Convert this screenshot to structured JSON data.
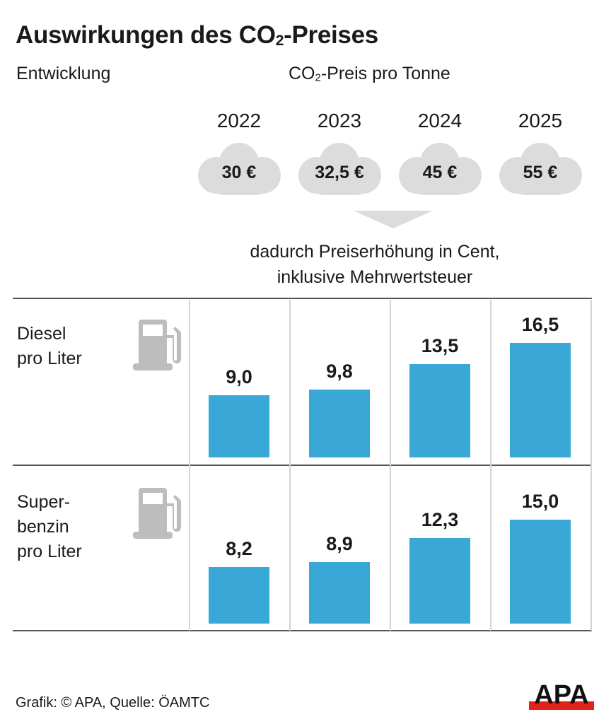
{
  "title_main": "Auswirkungen des CO",
  "title_sub": "2",
  "title_rest": "-Preises",
  "subtitle": "Entwicklung",
  "unit_main": "CO",
  "unit_sub": "2",
  "unit_rest": "-Preis pro Tonne",
  "note_line1": "dadurch Preiserhöhung in Cent,",
  "note_line2": "inklusive Mehrwertsteuer",
  "source": "Grafik: © APA, Quelle: ÖAMTC",
  "logo": "APA",
  "colors": {
    "bar": "#3aa8d6",
    "cloud": "#dcdcdc",
    "icon": "#bdbdbd",
    "logo_red": "#e2231a"
  },
  "chart_data": {
    "type": "bar",
    "title": "Auswirkungen des CO2-Preises",
    "categories": [
      "2022",
      "2023",
      "2024",
      "2025"
    ],
    "co2_price_labels": [
      "30 €",
      "32,5 €",
      "45 €",
      "55 €"
    ],
    "co2_price_eur_per_tonne": [
      30,
      32.5,
      45,
      55
    ],
    "ylabel": "Preiserhöhung in Cent, inklusive Mehrwertsteuer",
    "series": [
      {
        "name": "Diesel pro Liter",
        "label_lines": [
          "Diesel",
          "pro Liter"
        ],
        "values": [
          9.0,
          9.8,
          13.5,
          16.5
        ],
        "value_labels": [
          "9,0",
          "9,8",
          "13,5",
          "16,5"
        ]
      },
      {
        "name": "Superbenzin pro Liter",
        "label_lines": [
          "Super-",
          "benzin",
          "pro Liter"
        ],
        "values": [
          8.2,
          8.9,
          12.3,
          15.0
        ],
        "value_labels": [
          "8,2",
          "8,9",
          "12,3",
          "15,0"
        ]
      }
    ]
  }
}
